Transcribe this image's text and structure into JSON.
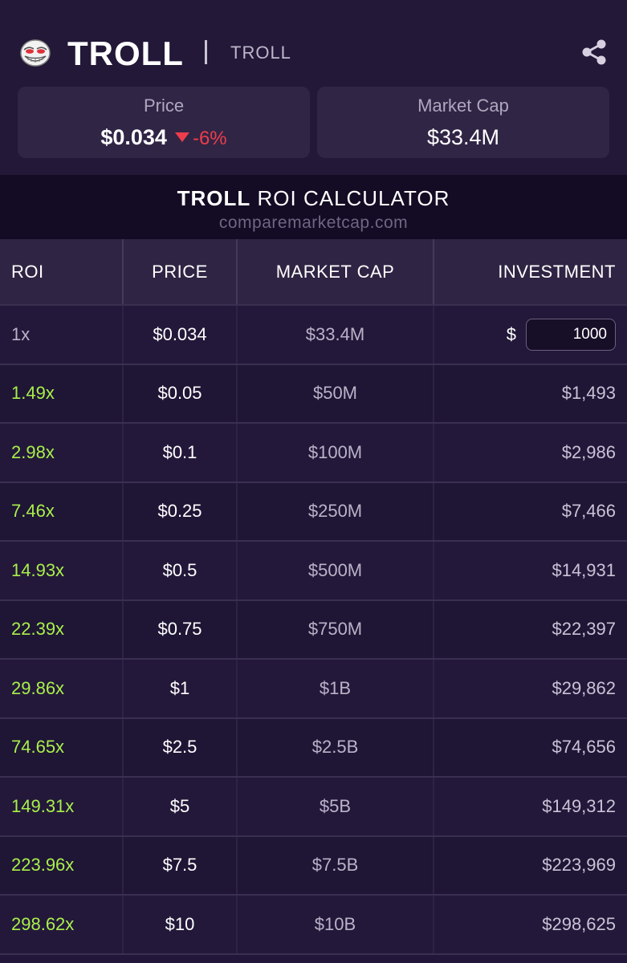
{
  "header": {
    "coin_name": "TROLL",
    "ticker": "TROLL",
    "logo_icon": "troll-face-icon",
    "share_icon": "share-icon"
  },
  "price_card": {
    "label": "Price",
    "value": "$0.034",
    "change": "-6%",
    "change_color": "#ee3d4c"
  },
  "mcap_card": {
    "label": "Market Cap",
    "value": "$33.4M"
  },
  "calculator": {
    "title_bold": "TROLL",
    "title_rest": " ROI CALCULATOR",
    "site": "comparemarketcap.com"
  },
  "table": {
    "headers": [
      "ROI",
      "PRICE",
      "MARKET CAP",
      "INVESTMENT"
    ],
    "investment_currency": "$",
    "investment_value": "1000",
    "rows": [
      {
        "roi": "1x",
        "price": "$0.034",
        "mcap": "$33.4M",
        "investment": ""
      },
      {
        "roi": "1.49x",
        "price": "$0.05",
        "mcap": "$50M",
        "investment": "$1,493"
      },
      {
        "roi": "2.98x",
        "price": "$0.1",
        "mcap": "$100M",
        "investment": "$2,986"
      },
      {
        "roi": "7.46x",
        "price": "$0.25",
        "mcap": "$250M",
        "investment": "$7,466"
      },
      {
        "roi": "14.93x",
        "price": "$0.5",
        "mcap": "$500M",
        "investment": "$14,931"
      },
      {
        "roi": "22.39x",
        "price": "$0.75",
        "mcap": "$750M",
        "investment": "$22,397"
      },
      {
        "roi": "29.86x",
        "price": "$1",
        "mcap": "$1B",
        "investment": "$29,862"
      },
      {
        "roi": "74.65x",
        "price": "$2.5",
        "mcap": "$2.5B",
        "investment": "$74,656"
      },
      {
        "roi": "149.31x",
        "price": "$5",
        "mcap": "$5B",
        "investment": "$149,312"
      },
      {
        "roi": "223.96x",
        "price": "$7.5",
        "mcap": "$7.5B",
        "investment": "$223,969"
      },
      {
        "roi": "298.62x",
        "price": "$10",
        "mcap": "$10B",
        "investment": "$298,625"
      }
    ]
  },
  "colors": {
    "background": "#22173a",
    "card": "#302545",
    "roi_green": "#a8ef4a",
    "negative_red": "#ee3d4c"
  }
}
